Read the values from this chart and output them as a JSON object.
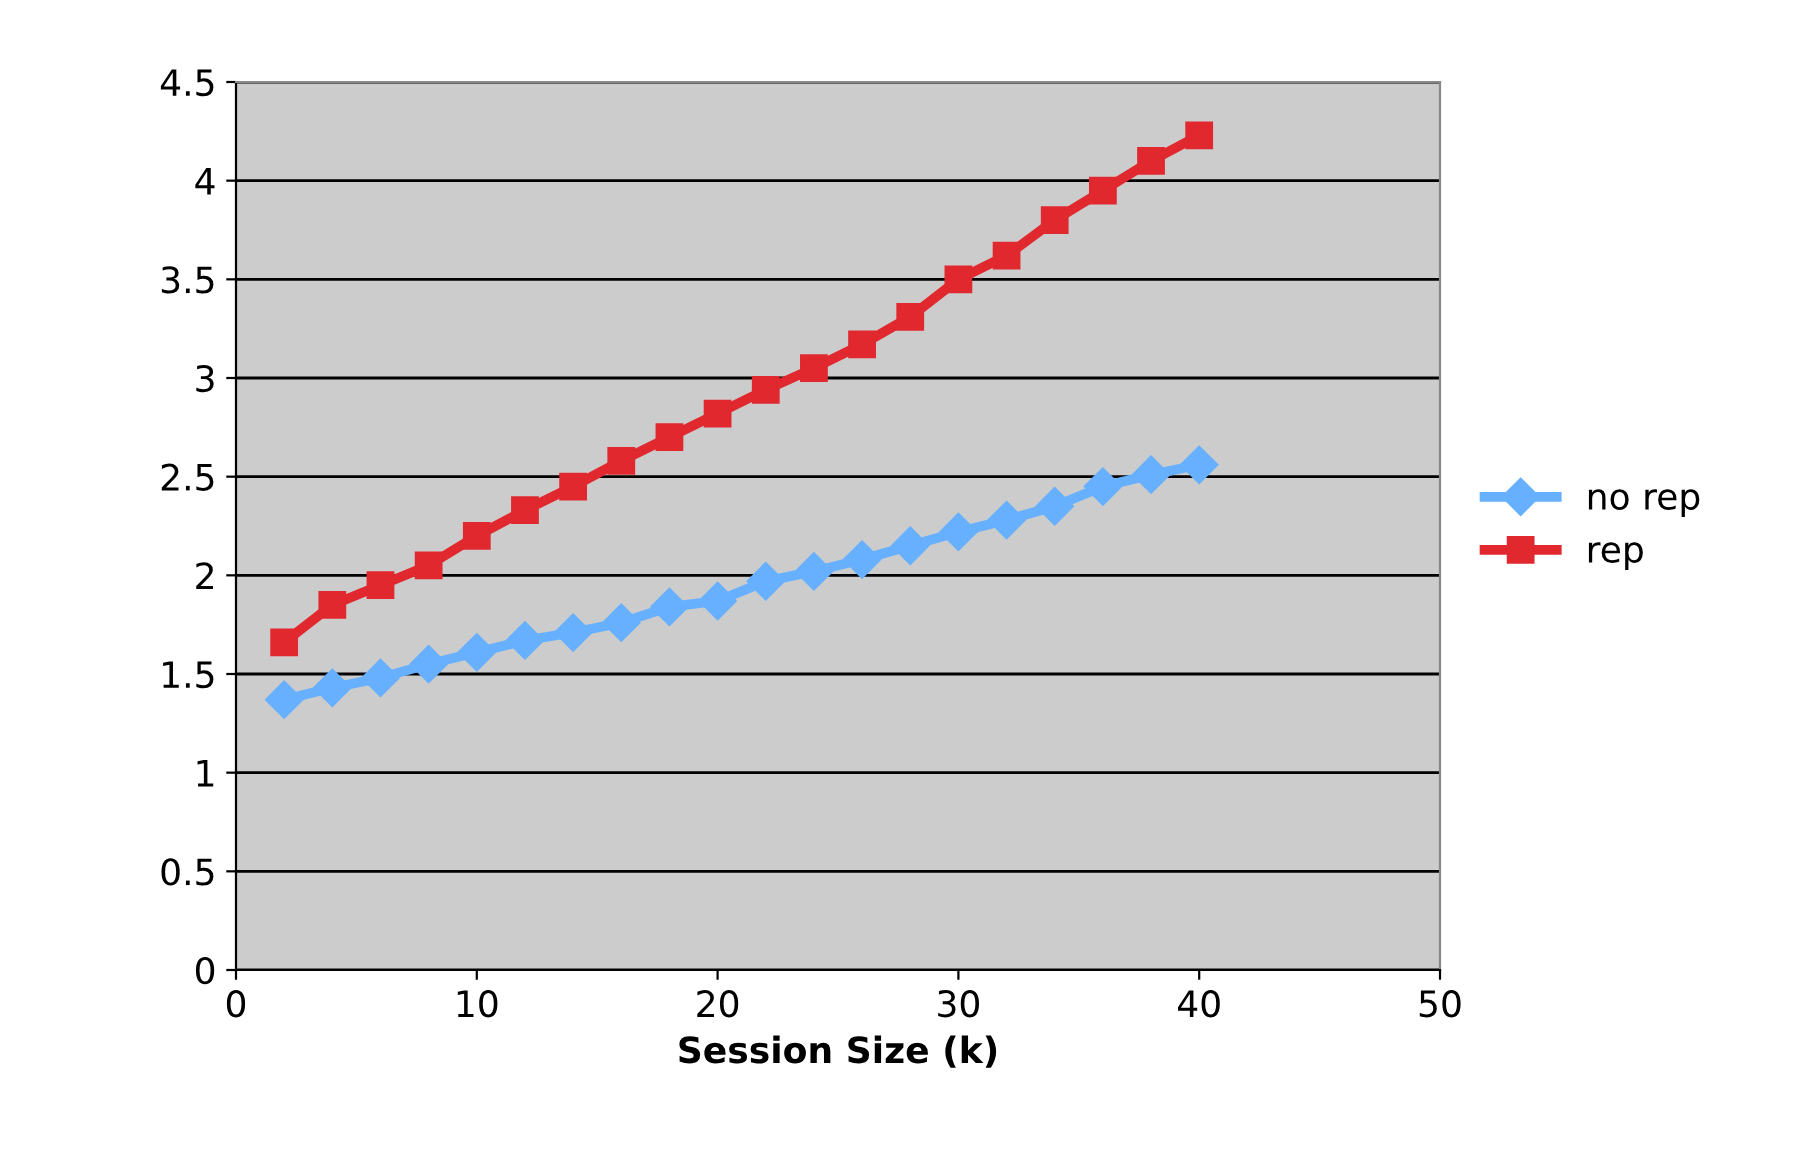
{
  "chart_data": {
    "type": "line",
    "xlabel": "Session Size (k)",
    "x": [
      2,
      4,
      6,
      8,
      10,
      12,
      14,
      16,
      18,
      20,
      22,
      24,
      26,
      28,
      30,
      32,
      34,
      36,
      38,
      40
    ],
    "series": [
      {
        "name": "no rep",
        "color": "#66b0ff",
        "marker": "diamond",
        "values": [
          1.37,
          1.43,
          1.48,
          1.55,
          1.61,
          1.67,
          1.71,
          1.76,
          1.84,
          1.87,
          1.97,
          2.02,
          2.08,
          2.15,
          2.22,
          2.28,
          2.35,
          2.45,
          2.51,
          2.56
        ]
      },
      {
        "name": "rep",
        "color": "#e0282e",
        "marker": "square",
        "values": [
          1.66,
          1.85,
          1.95,
          2.05,
          2.2,
          2.33,
          2.45,
          2.58,
          2.7,
          2.82,
          2.94,
          3.05,
          3.17,
          3.31,
          3.5,
          3.62,
          3.8,
          3.95,
          4.1,
          4.23
        ]
      }
    ],
    "xlim": [
      0,
      50
    ],
    "xticks": [
      0,
      10,
      20,
      30,
      40,
      50
    ],
    "ylim": [
      0,
      4.5
    ],
    "yticks": [
      0,
      0.5,
      1,
      1.5,
      2,
      2.5,
      3,
      3.5,
      4,
      4.5
    ],
    "grid": "y",
    "legend": "right"
  }
}
